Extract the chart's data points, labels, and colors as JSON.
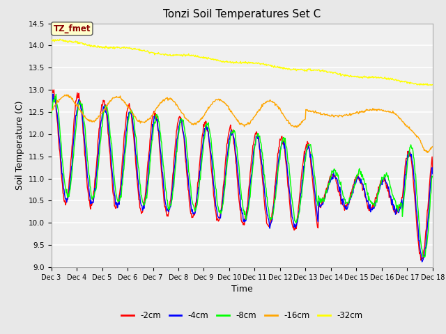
{
  "title": "Tonzi Soil Temperatures Set C",
  "xlabel": "Time",
  "ylabel": "Soil Temperature (C)",
  "ylim": [
    9.0,
    14.5
  ],
  "annotation": "TZ_fmet",
  "annotation_color": "#8B0000",
  "annotation_bg": "#FFFFCC",
  "background_color": "#E8E8E8",
  "plot_bg": "#F0F0F0",
  "x_tick_labels": [
    "Dec 3",
    "Dec 4",
    "Dec 5",
    "Dec 6",
    "Dec 7",
    "Dec 8",
    "Dec 9",
    "Dec 10",
    "Dec 11",
    "Dec 12",
    "Dec 13",
    "Dec 14",
    "Dec 15",
    "Dec 16",
    "Dec 17",
    "Dec 18"
  ],
  "legend_labels": [
    "-2cm",
    "-4cm",
    "-8cm",
    "-16cm",
    "-32cm"
  ],
  "legend_colors": [
    "red",
    "blue",
    "green",
    "orange",
    "yellow"
  ],
  "num_points": 720
}
